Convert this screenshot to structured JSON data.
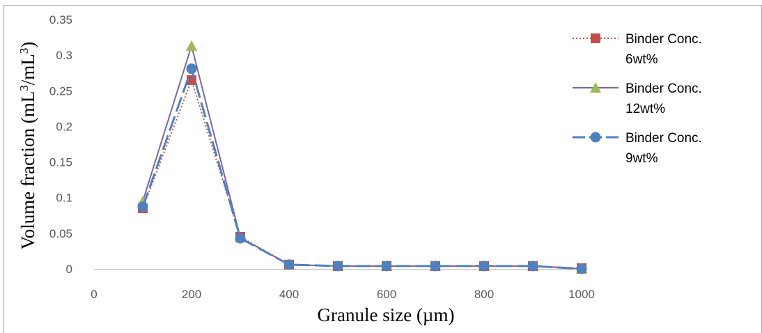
{
  "chart_data": {
    "type": "line",
    "title": "",
    "xlabel": "Granule size (µm)",
    "ylabel_parts": [
      "Volume fraction (mL",
      "3",
      "/mL",
      "3",
      ")"
    ],
    "xlim": [
      0,
      1000
    ],
    "ylim": [
      0,
      0.35
    ],
    "x_ticks": [
      "0",
      "200",
      "400",
      "600",
      "800",
      "1000"
    ],
    "y_ticks": [
      "0",
      "0.05",
      "0.1",
      "0.15",
      "0.2",
      "0.25",
      "0.3",
      "0.35"
    ],
    "grid": false,
    "legend_position": "right",
    "x": [
      100,
      200,
      300,
      400,
      500,
      600,
      700,
      800,
      900,
      1000
    ],
    "series": [
      {
        "name_lines": [
          "Binder Conc.",
          "6wt%"
        ],
        "values": [
          0.085,
          0.265,
          0.045,
          0.006,
          0.004,
          0.004,
          0.004,
          0.004,
          0.004,
          0.001
        ],
        "color": "#c0504d",
        "line_style": "dotted",
        "marker": "square"
      },
      {
        "name_lines": [
          "Binder Conc.",
          "12wt%"
        ],
        "values": [
          0.095,
          0.313,
          0.044,
          0.006,
          0.004,
          0.004,
          0.004,
          0.004,
          0.004,
          0.0
        ],
        "color": "#8064a2",
        "marker_color": "#9bbb59",
        "line_style": "solid",
        "marker": "triangle"
      },
      {
        "name_lines": [
          "Binder Conc.",
          "9wt%"
        ],
        "values": [
          0.087,
          0.281,
          0.043,
          0.006,
          0.004,
          0.004,
          0.004,
          0.004,
          0.004,
          0.0
        ],
        "color": "#4f81bd",
        "line_style": "long-dash",
        "marker": "circle"
      }
    ]
  }
}
